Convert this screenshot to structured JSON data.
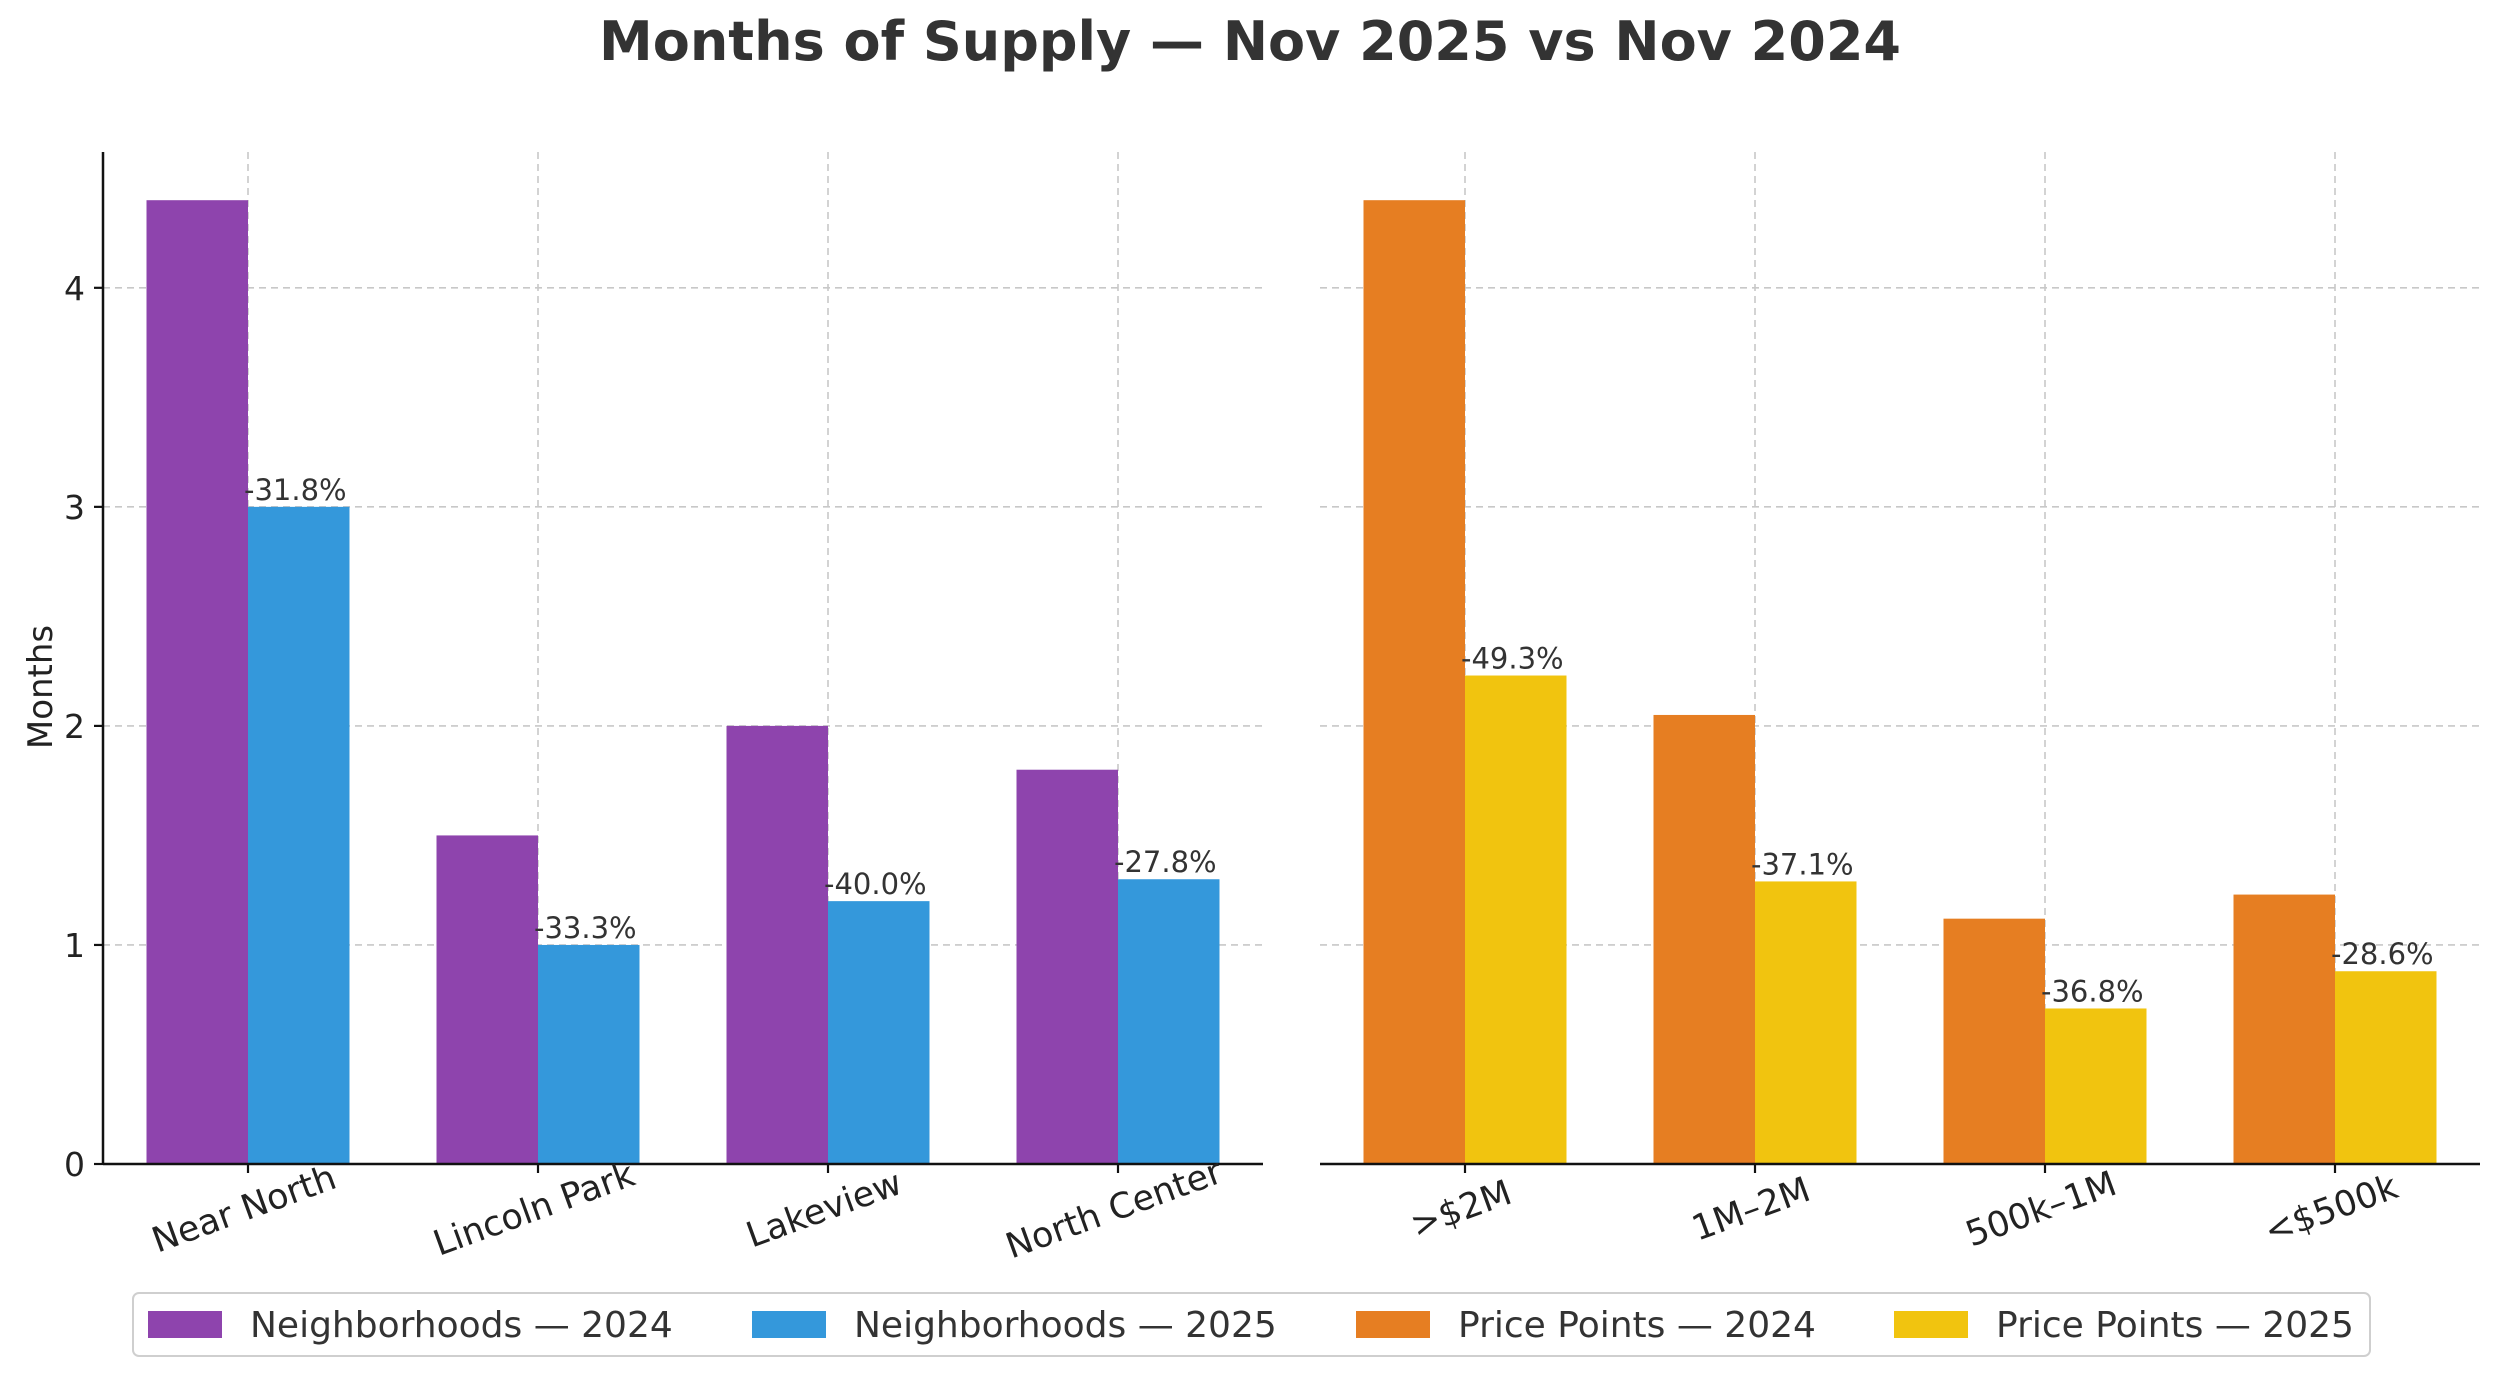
{
  "chart_data": {
    "type": "bar",
    "title": "Months of Supply — Nov 2025 vs Nov 2024",
    "ylabel": "Months",
    "ylim": [
      0,
      4.62
    ],
    "yticks": [
      "0",
      "1",
      "2",
      "3",
      "4"
    ],
    "grid": true,
    "legend_position": "bottom-center",
    "panels": [
      {
        "name": "Neighborhoods",
        "categories": [
          "Near North",
          "Lincoln Park",
          "Lakeview",
          "North Center"
        ],
        "series": [
          {
            "name": "Neighborhoods — 2024",
            "color": "#8e44ad",
            "values": [
              4.4,
              1.5,
              2.0,
              1.8
            ]
          },
          {
            "name": "Neighborhoods — 2025",
            "color": "#3498db",
            "values": [
              3.0,
              1.0,
              1.2,
              1.3
            ]
          }
        ],
        "change_labels": [
          "-31.8%",
          "-33.3%",
          "-40.0%",
          "-27.8%"
        ]
      },
      {
        "name": "Price Points",
        "categories": [
          ">$2M",
          "1M–2M",
          "500k–1M",
          "<$500k"
        ],
        "series": [
          {
            "name": "Price Points — 2024",
            "color": "#e67e22",
            "values": [
              4.4,
              2.05,
              1.12,
              1.23
            ]
          },
          {
            "name": "Price Points — 2025",
            "color": "#f1c40f",
            "values": [
              2.23,
              1.29,
              0.71,
              0.88
            ]
          }
        ],
        "change_labels": [
          "-49.3%",
          "-37.1%",
          "-36.8%",
          "-28.6%"
        ]
      }
    ],
    "legend": [
      "Neighborhoods — 2024",
      "Neighborhoods — 2025",
      "Price Points — 2024",
      "Price Points — 2025"
    ]
  }
}
